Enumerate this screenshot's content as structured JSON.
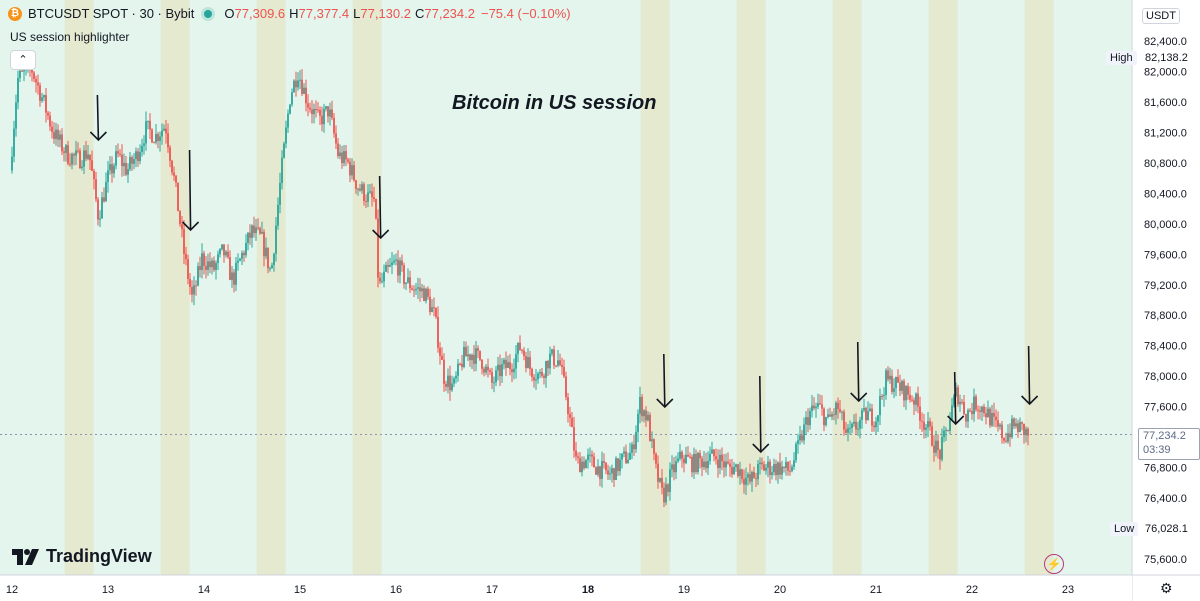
{
  "header": {
    "coin_glyph": "₿",
    "symbol": "BTCUSDT SPOT · 30 · Bybit",
    "o_label": "O",
    "o_value": "77,309.6",
    "h_label": "H",
    "h_value": "77,377.4",
    "l_label": "L",
    "l_value": "77,130.2",
    "c_label": "C",
    "c_value": "77,234.2",
    "change": "−75.4 (−0.10%)",
    "indicator": "US session highlighter",
    "collapse_glyph": "⌃"
  },
  "annotation": "Bitcoin in US session",
  "brand": "TradingView",
  "currency": "USDT",
  "high_label": "High",
  "high_value": "82,138.2",
  "low_label": "Low",
  "low_value": "76,028.1",
  "last_price": "77,234.2",
  "countdown": "03:39",
  "settings_glyph": "⚙",
  "alert_glyph": "⚡",
  "colors": {
    "up": "#26a69a",
    "down": "#ef5350",
    "background": "#e3f5ec",
    "session": "#e5e8cf"
  },
  "chart_data": {
    "type": "candlestick",
    "x_ticks": [
      {
        "day": 12,
        "label": "12"
      },
      {
        "day": 13,
        "label": "13"
      },
      {
        "day": 14,
        "label": "14"
      },
      {
        "day": 15,
        "label": "15"
      },
      {
        "day": 16,
        "label": "16"
      },
      {
        "day": 17,
        "label": "17"
      },
      {
        "day": 18,
        "label": "18",
        "bold": true
      },
      {
        "day": 19,
        "label": "19"
      },
      {
        "day": 20,
        "label": "20"
      },
      {
        "day": 21,
        "label": "21"
      },
      {
        "day": 22,
        "label": "22"
      },
      {
        "day": 23,
        "label": "23"
      }
    ],
    "y_ticks": [
      {
        "value": 75600,
        "label": "75,600.0"
      },
      {
        "value": 76000,
        "label": "76,000.0"
      },
      {
        "value": 76400,
        "label": "76,400.0"
      },
      {
        "value": 76800,
        "label": "76,800.0"
      },
      {
        "value": 77200,
        "label": "77,200.0"
      },
      {
        "value": 77600,
        "label": "77,600.0"
      },
      {
        "value": 78000,
        "label": "78,000.0"
      },
      {
        "value": 78400,
        "label": "78,400.0"
      },
      {
        "value": 78800,
        "label": "78,800.0"
      },
      {
        "value": 79200,
        "label": "79,200.0"
      },
      {
        "value": 79600,
        "label": "79,600.0"
      },
      {
        "value": 80000,
        "label": "80,000.0"
      },
      {
        "value": 80400,
        "label": "80,400.0"
      },
      {
        "value": 80800,
        "label": "80,800.0"
      },
      {
        "value": 81200,
        "label": "81,200.0"
      },
      {
        "value": 81600,
        "label": "81,600.0"
      },
      {
        "value": 82000,
        "label": "82,000.0"
      },
      {
        "value": 82400,
        "label": "82,400.0"
      }
    ],
    "y_range": [
      75450,
      82650
    ],
    "x_range": [
      11.95,
      23.45
    ],
    "last_price": 77234.2,
    "high": 82138.2,
    "low": 76028.1,
    "sessions": [
      [
        11.55,
        11.85
      ],
      [
        12.55,
        12.85
      ],
      [
        13.55,
        13.85
      ],
      [
        14.55,
        14.85
      ],
      [
        15.55,
        15.85
      ],
      [
        18.55,
        18.85
      ],
      [
        19.55,
        19.85
      ],
      [
        20.55,
        20.85
      ],
      [
        21.55,
        21.85
      ],
      [
        22.55,
        22.85
      ]
    ],
    "path": [
      [
        12.0,
        80700
      ],
      [
        12.08,
        81900
      ],
      [
        12.22,
        82050
      ],
      [
        12.35,
        81600
      ],
      [
        12.45,
        81200
      ],
      [
        12.6,
        80900
      ],
      [
        12.72,
        80850
      ],
      [
        12.82,
        80950
      ],
      [
        12.92,
        80100
      ],
      [
        13.02,
        80600
      ],
      [
        13.12,
        80900
      ],
      [
        13.22,
        80700
      ],
      [
        13.32,
        80900
      ],
      [
        13.42,
        81250
      ],
      [
        13.52,
        81150
      ],
      [
        13.62,
        81300
      ],
      [
        13.72,
        80500
      ],
      [
        13.82,
        79550
      ],
      [
        13.9,
        79000
      ],
      [
        14.0,
        79550
      ],
      [
        14.12,
        79400
      ],
      [
        14.22,
        79650
      ],
      [
        14.32,
        79250
      ],
      [
        14.42,
        79600
      ],
      [
        14.52,
        79900
      ],
      [
        14.62,
        79800
      ],
      [
        14.72,
        79350
      ],
      [
        14.82,
        80600
      ],
      [
        14.92,
        81700
      ],
      [
        15.0,
        82000
      ],
      [
        15.1,
        81600
      ],
      [
        15.22,
        81350
      ],
      [
        15.32,
        81500
      ],
      [
        15.42,
        80900
      ],
      [
        15.52,
        80800
      ],
      [
        15.62,
        80500
      ],
      [
        15.72,
        80350
      ],
      [
        15.8,
        80300
      ],
      [
        15.84,
        79150
      ],
      [
        15.92,
        79350
      ],
      [
        16.02,
        79500
      ],
      [
        16.12,
        79250
      ],
      [
        16.22,
        79150
      ],
      [
        16.32,
        79100
      ],
      [
        16.42,
        78800
      ],
      [
        16.52,
        78000
      ],
      [
        16.62,
        77850
      ],
      [
        16.72,
        78250
      ],
      [
        16.82,
        78300
      ],
      [
        16.92,
        78200
      ],
      [
        17.02,
        77900
      ],
      [
        17.12,
        78100
      ],
      [
        17.22,
        78150
      ],
      [
        17.32,
        78400
      ],
      [
        17.42,
        78100
      ],
      [
        17.52,
        78000
      ],
      [
        17.62,
        78250
      ],
      [
        17.72,
        78200
      ],
      [
        17.8,
        77700
      ],
      [
        17.9,
        76850
      ],
      [
        18.02,
        76900
      ],
      [
        18.12,
        76800
      ],
      [
        18.25,
        76700
      ],
      [
        18.38,
        76900
      ],
      [
        18.48,
        77000
      ],
      [
        18.56,
        77650
      ],
      [
        18.64,
        77450
      ],
      [
        18.72,
        76800
      ],
      [
        18.8,
        76400
      ],
      [
        18.9,
        76750
      ],
      [
        19.0,
        76950
      ],
      [
        19.12,
        76850
      ],
      [
        19.22,
        76900
      ],
      [
        19.35,
        76950
      ],
      [
        19.48,
        76800
      ],
      [
        19.58,
        76800
      ],
      [
        19.7,
        76600
      ],
      [
        19.82,
        76800
      ],
      [
        19.92,
        76800
      ],
      [
        20.02,
        76800
      ],
      [
        20.12,
        76750
      ],
      [
        20.22,
        77100
      ],
      [
        20.32,
        77500
      ],
      [
        20.42,
        77600
      ],
      [
        20.52,
        77400
      ],
      [
        20.62,
        77600
      ],
      [
        20.72,
        77200
      ],
      [
        20.82,
        77350
      ],
      [
        20.92,
        77500
      ],
      [
        21.02,
        77450
      ],
      [
        21.12,
        77950
      ],
      [
        21.22,
        77900
      ],
      [
        21.32,
        77800
      ],
      [
        21.42,
        77700
      ],
      [
        21.52,
        77400
      ],
      [
        21.6,
        77200
      ],
      [
        21.68,
        76950
      ],
      [
        21.76,
        77300
      ],
      [
        21.86,
        77800
      ],
      [
        21.96,
        77500
      ],
      [
        22.06,
        77650
      ],
      [
        22.16,
        77550
      ],
      [
        22.26,
        77350
      ],
      [
        22.36,
        77200
      ],
      [
        22.46,
        77350
      ],
      [
        22.55,
        77300
      ],
      [
        22.6,
        77234
      ]
    ]
  }
}
